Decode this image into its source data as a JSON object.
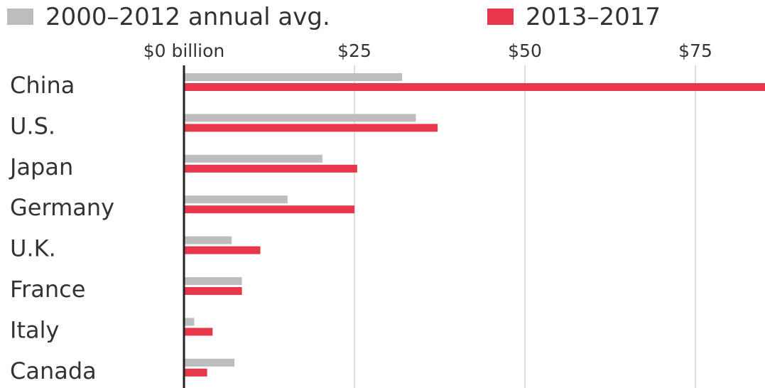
{
  "chart_data": {
    "type": "bar",
    "orientation": "horizontal",
    "title": "",
    "xlabel": "",
    "ylabel": "",
    "categories": [
      "China",
      "U.S.",
      "Japan",
      "Germany",
      "U.K.",
      "France",
      "Italy",
      "Canada"
    ],
    "series": [
      {
        "name": "2000–2012 annual avg.",
        "color": "#bdbdbd",
        "values": [
          32,
          34,
          20.3,
          15.2,
          7,
          8.5,
          1.5,
          7.4
        ]
      },
      {
        "name": "2013–2017",
        "color": "#e8374b",
        "values": [
          86,
          37.2,
          25.4,
          25,
          11.2,
          8.5,
          4.2,
          3.4
        ]
      }
    ],
    "x_ticks": [
      {
        "value": 0,
        "label": "$0 billion"
      },
      {
        "value": 25,
        "label": "$25"
      },
      {
        "value": 50,
        "label": "$50"
      },
      {
        "value": 75,
        "label": "$75"
      }
    ],
    "xlim": [
      0,
      85
    ],
    "grid": true,
    "legend_position": "top-left"
  }
}
